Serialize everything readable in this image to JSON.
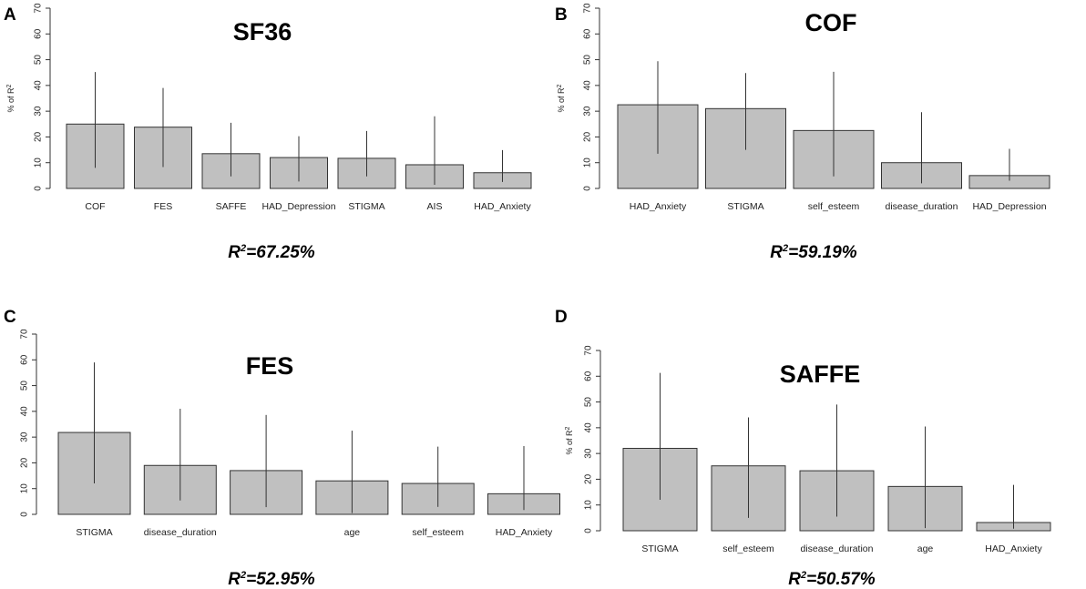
{
  "chart_data": [
    {
      "type": "bar",
      "panel": "A",
      "title": "SF36",
      "ylabel": "% of R",
      "ylabel_sup": "2",
      "show_ylabel": true,
      "ylim": [
        0,
        70
      ],
      "yticks": [
        0,
        10,
        20,
        30,
        40,
        50,
        60,
        70
      ],
      "categories": [
        "COF",
        "FES",
        "SAFFE",
        "HAD_Depression",
        "STIGMA",
        "AIS",
        "HAD_Anxiety"
      ],
      "values": [
        25,
        23.8,
        13.5,
        12,
        11.7,
        9.2,
        6.1
      ],
      "ci_low": [
        8,
        8.3,
        4.7,
        2.7,
        4.7,
        1.4,
        2.5
      ],
      "ci_high": [
        45.2,
        39,
        25.5,
        20.3,
        22.3,
        28,
        14.9
      ],
      "r2_label": "R",
      "r2_sup": "2",
      "r2_value": "=67.25%"
    },
    {
      "type": "bar",
      "panel": "B",
      "title": "COF",
      "ylabel": "% of R",
      "ylabel_sup": "2",
      "show_ylabel": true,
      "ylim": [
        0,
        70
      ],
      "yticks": [
        0,
        10,
        20,
        30,
        40,
        50,
        60,
        70
      ],
      "categories": [
        "HAD_Anxiety",
        "STIGMA",
        "self_esteem",
        "disease_duration",
        "HAD_Depression"
      ],
      "values": [
        32.5,
        31,
        22.5,
        10,
        5
      ],
      "ci_low": [
        13.5,
        15,
        4.7,
        2,
        3
      ],
      "ci_high": [
        49.4,
        44.8,
        45.3,
        29.6,
        15.4
      ],
      "r2_label": "R",
      "r2_sup": "2",
      "r2_value": "=59.19%"
    },
    {
      "type": "bar",
      "panel": "C",
      "title": "FES",
      "ylabel": "",
      "ylabel_sup": "",
      "show_ylabel": false,
      "ylim": [
        0,
        70
      ],
      "yticks": [
        0,
        10,
        20,
        30,
        40,
        50,
        60,
        70
      ],
      "categories": [
        "STIGMA",
        "disease_duration",
        "",
        "age",
        "self_esteem",
        "HAD_Anxiety"
      ],
      "values": [
        31.8,
        19,
        17,
        13,
        12,
        8
      ],
      "ci_low": [
        12,
        5.4,
        2.8,
        0.5,
        2.9,
        1.7
      ],
      "ci_high": [
        59,
        41,
        38.6,
        32.5,
        26.3,
        26.5
      ],
      "r2_label": "R",
      "r2_sup": "2",
      "r2_value": "=52.95%"
    },
    {
      "type": "bar",
      "panel": "D",
      "title": "SAFFE",
      "ylabel": "% of R",
      "ylabel_sup": "2",
      "show_ylabel": true,
      "ylim": [
        0,
        70
      ],
      "yticks": [
        0,
        10,
        20,
        30,
        40,
        50,
        60,
        70
      ],
      "categories": [
        "STIGMA",
        "self_esteem",
        "disease_duration",
        "age",
        "HAD_Anxiety"
      ],
      "values": [
        32,
        25.2,
        23.3,
        17.2,
        3.2
      ],
      "ci_low": [
        12,
        5,
        5.5,
        1,
        0.8
      ],
      "ci_high": [
        61.3,
        44,
        49,
        40.5,
        17.8
      ],
      "r2_label": "R",
      "r2_sup": "2",
      "r2_value": "=50.57%"
    }
  ]
}
